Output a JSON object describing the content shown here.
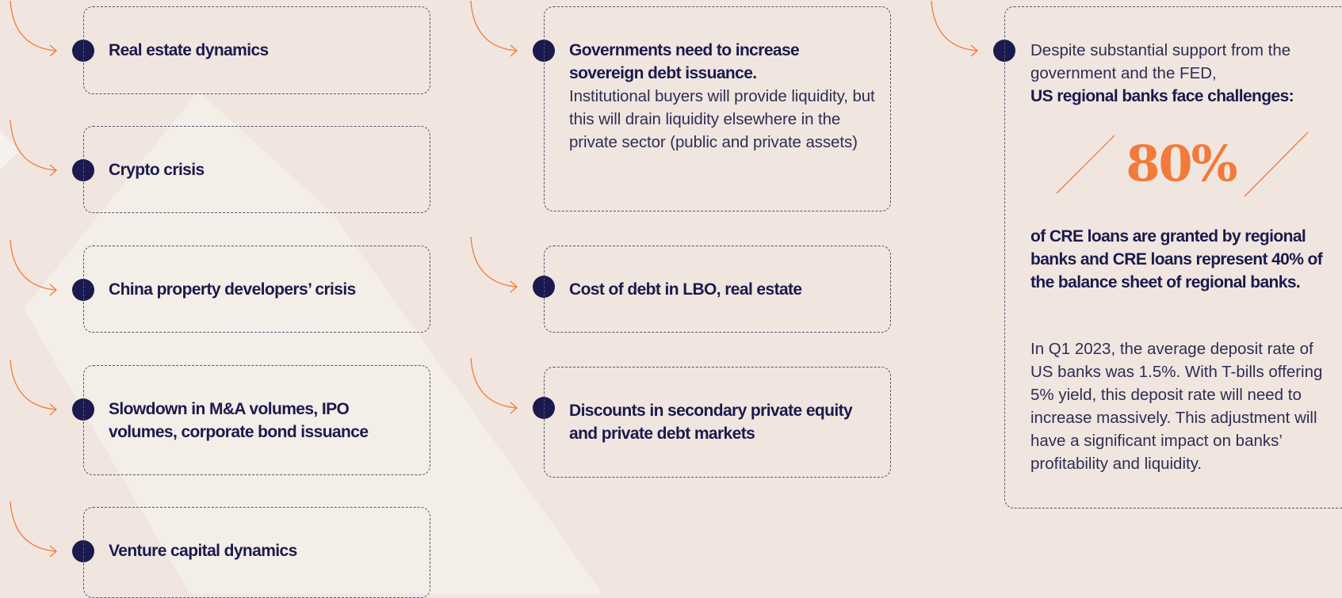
{
  "column_1": {
    "items": [
      {
        "title": "Real estate dynamics"
      },
      {
        "title": "Crypto crisis"
      },
      {
        "title": "China property developers’ crisis"
      },
      {
        "title": "Slowdown in M&A volumes, IPO volumes, corporate bond issuance"
      },
      {
        "title": "Venture capital dynamics"
      }
    ]
  },
  "column_2": {
    "items": [
      {
        "title": "Governments need to increase sovereign debt issuance.",
        "text": "Institutional buyers will provide liquidity, but this will drain liquidity elsewhere in the private sector (public and private assets)"
      },
      {
        "title": "Cost of debt in LBO, real estate"
      },
      {
        "title": "Discounts in secondary private equity and private debt markets"
      }
    ]
  },
  "column_3": {
    "intro": "Despite substantial support from the government and the FED,",
    "headline": "US regional banks face challenges:",
    "stat": "80%",
    "stat_text": "of CRE loans are granted by regional banks and CRE loans represent 40% of the balance sheet of regional banks.",
    "body": "In Q1 2023, the average deposit rate of US banks was 1.5%. With T-bills offering 5% yield, this deposit rate will need to increase massively. This adjustment will have a significant impact on banks’ profitability and liquidity."
  }
}
